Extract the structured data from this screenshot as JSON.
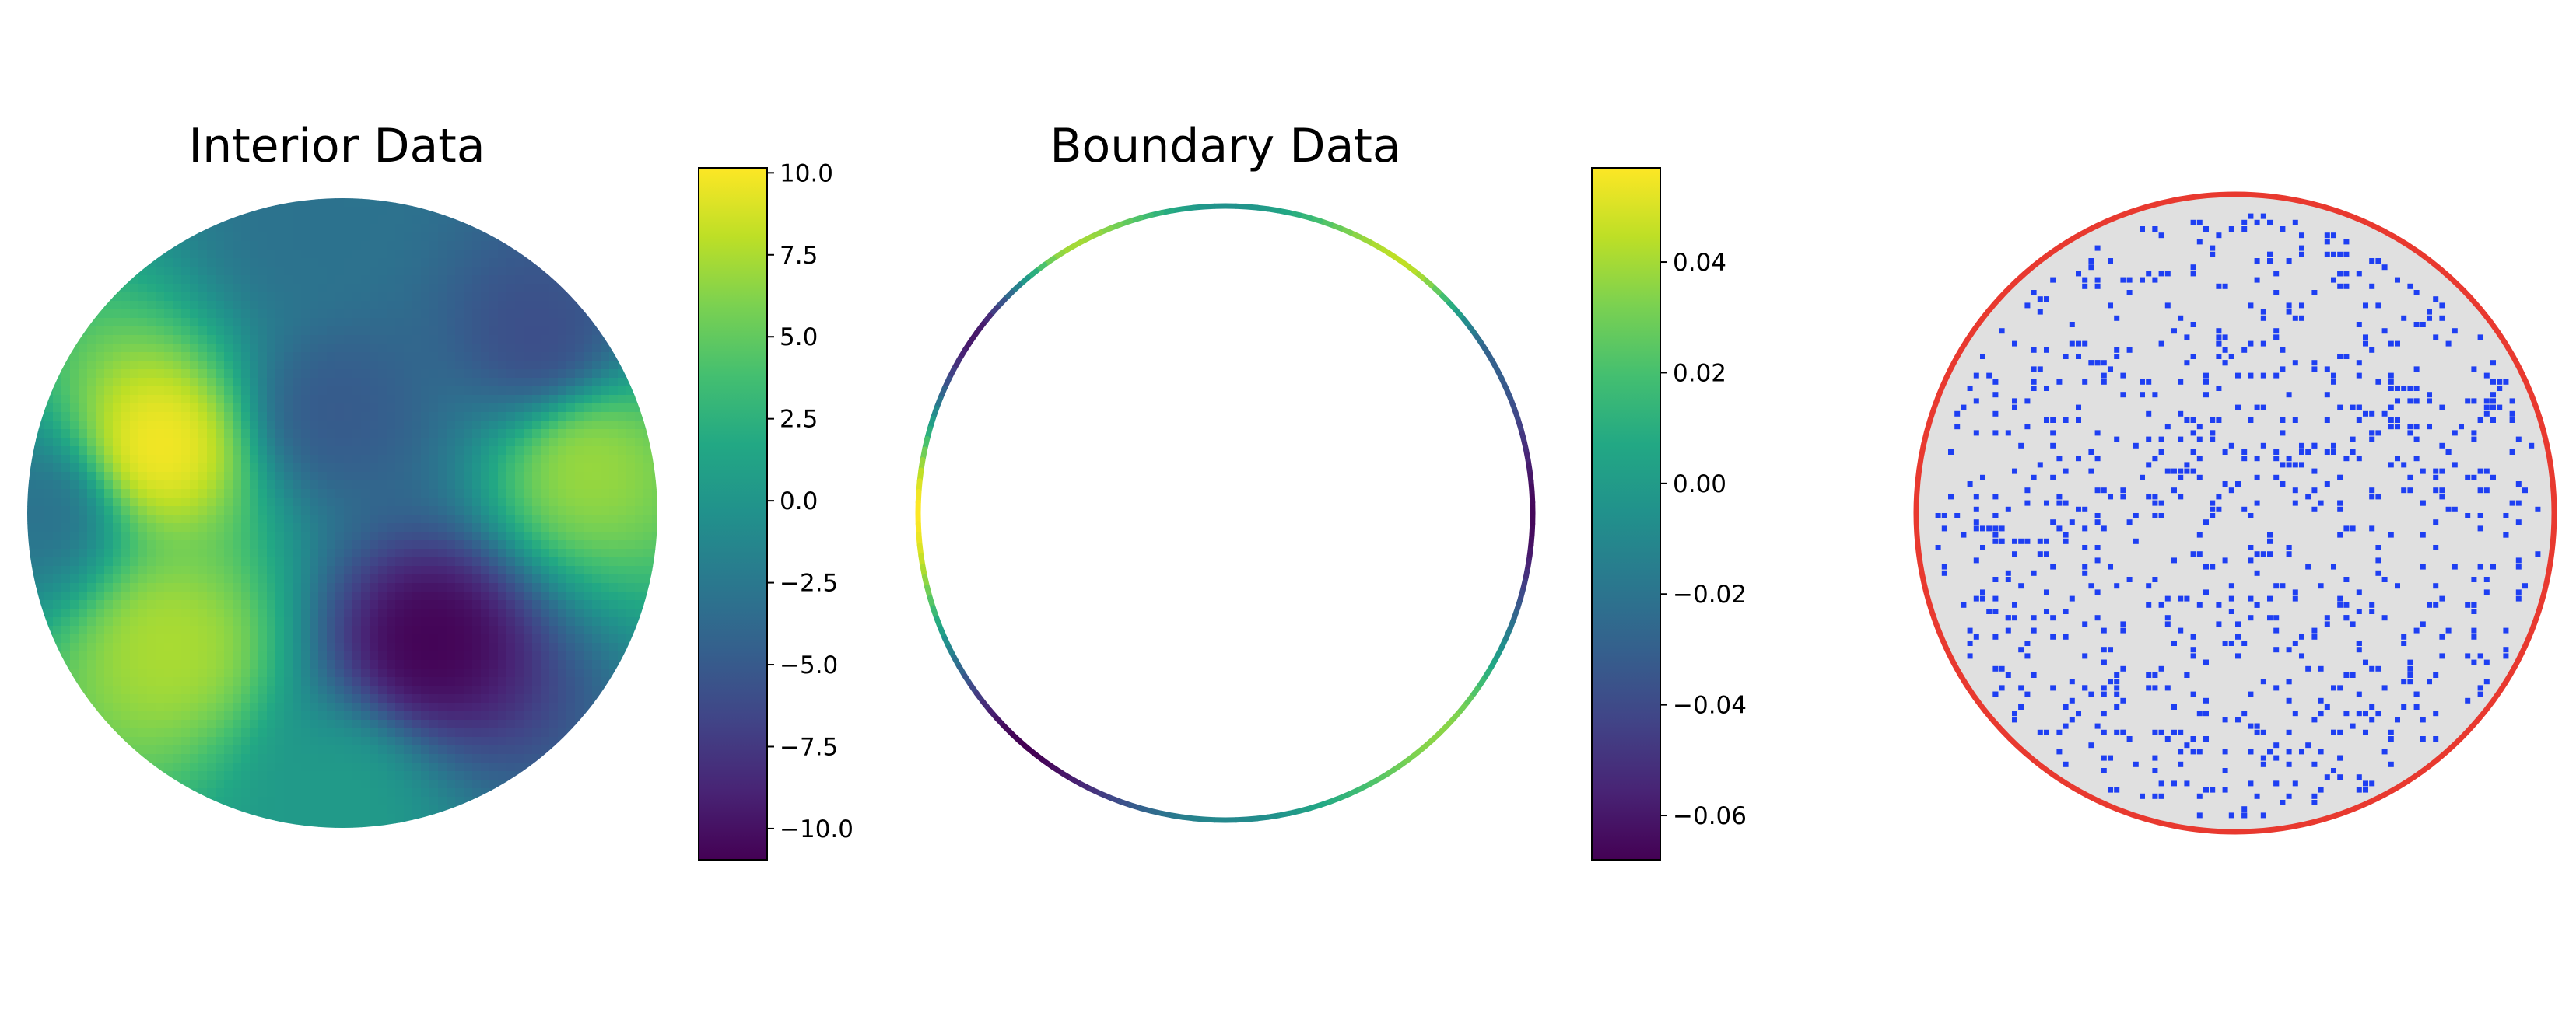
{
  "chart_data": [
    {
      "type": "heatmap",
      "title": "Interior Data",
      "domain_shape": "disk",
      "colormap": "viridis",
      "colorbar": {
        "range": [
          -10.95,
          10.15
        ],
        "ticks": [
          10.0,
          7.5,
          5.0,
          2.5,
          0.0,
          -2.5,
          -5.0,
          -7.5,
          -10.0
        ],
        "tick_labels": [
          "10.0",
          "7.5",
          "5.0",
          "2.5",
          "0.0",
          "−2.5",
          "−5.0",
          "−7.5",
          "−10.0"
        ]
      },
      "field_features": [
        {
          "x": -0.58,
          "y": 0.21,
          "value": 10.0
        },
        {
          "x": -0.55,
          "y": -0.42,
          "value": 7.5
        },
        {
          "x": 0.78,
          "y": 0.15,
          "value": 7.0
        },
        {
          "x": 0.28,
          "y": -0.41,
          "value": -10.9
        },
        {
          "x": -0.02,
          "y": 0.32,
          "value": -5.0
        },
        {
          "x": 0.62,
          "y": 0.55,
          "value": -6.0
        },
        {
          "x": -0.1,
          "y": 0.9,
          "value": -3.0
        },
        {
          "x": -0.95,
          "y": 0.0,
          "value": -3.0
        },
        {
          "x": 0.0,
          "y": -0.9,
          "value": 0.5
        }
      ]
    },
    {
      "type": "line",
      "title": "Boundary Data",
      "domain_shape": "circle boundary",
      "colormap": "viridis",
      "colorbar": {
        "range": [
          -0.068,
          0.057
        ],
        "ticks": [
          0.04,
          0.02,
          0.0,
          -0.02,
          -0.04,
          -0.06
        ],
        "tick_labels": [
          "0.04",
          "0.02",
          "0.00",
          "−0.02",
          "−0.04",
          "−0.06"
        ]
      },
      "boundary_values": [
        {
          "angle_deg": 0,
          "value": -0.066
        },
        {
          "angle_deg": 30,
          "value": -0.03
        },
        {
          "angle_deg": 55,
          "value": 0.045
        },
        {
          "angle_deg": 90,
          "value": -0.005
        },
        {
          "angle_deg": 120,
          "value": 0.04
        },
        {
          "angle_deg": 145,
          "value": -0.06
        },
        {
          "angle_deg": 180,
          "value": 0.057
        },
        {
          "angle_deg": 230,
          "value": -0.068
        },
        {
          "angle_deg": 270,
          "value": -0.01
        },
        {
          "angle_deg": 315,
          "value": 0.035
        },
        {
          "angle_deg": 360,
          "value": -0.066
        }
      ]
    },
    {
      "type": "scatter",
      "title": "",
      "domain_shape": "disk",
      "colors": {
        "fill": "#e0e0e0",
        "boundary": "#e8392f",
        "points": "#1e3ff2"
      },
      "sample_point_count": 900
    }
  ]
}
